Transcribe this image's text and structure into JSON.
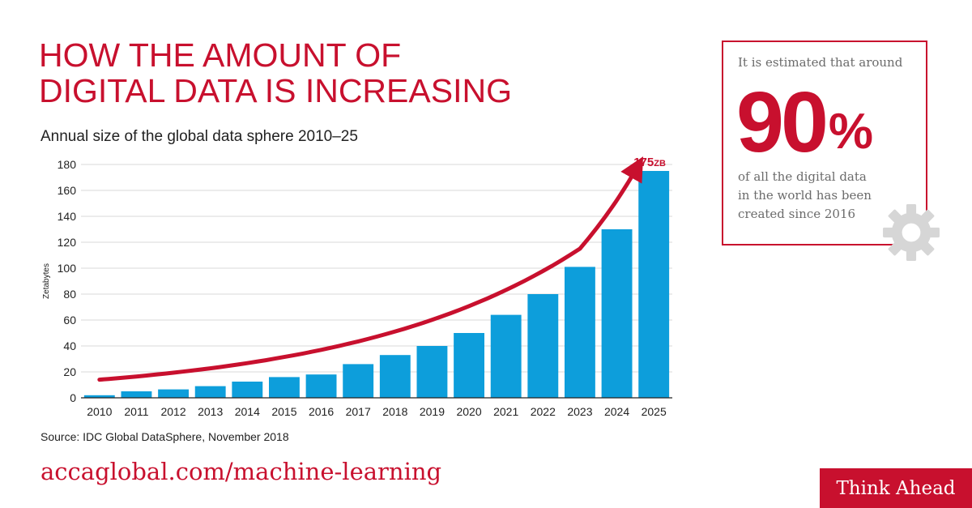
{
  "header": {
    "title_line1": "HOW THE AMOUNT OF",
    "title_line2": "DIGITAL DATA IS INCREASING",
    "subtitle": "Annual size of the global data sphere 2010–25"
  },
  "chart_data": {
    "type": "bar",
    "title": "Annual size of the global data sphere 2010–25",
    "xlabel": "",
    "ylabel": "Zetabytes",
    "categories": [
      "2010",
      "2011",
      "2012",
      "2013",
      "2014",
      "2015",
      "2016",
      "2017",
      "2018",
      "2019",
      "2020",
      "2021",
      "2022",
      "2023",
      "2024",
      "2025"
    ],
    "values": [
      2,
      5,
      6.5,
      9,
      12.5,
      16,
      18,
      26,
      33,
      40,
      50,
      64,
      80,
      101,
      130,
      175
    ],
    "ylim": [
      0,
      180
    ],
    "yticks": [
      0,
      20,
      40,
      60,
      80,
      100,
      120,
      140,
      160,
      180
    ],
    "grid": true,
    "bar_color": "#0d9edb",
    "trend_color": "#c8102e",
    "annotation": {
      "value": "175",
      "unit": "ZB"
    }
  },
  "source": "Source: IDC Global DataSphere, November 2018",
  "url": "accaglobal.com/machine-learning",
  "callout": {
    "lead": "It is estimated that around",
    "big_number": "90",
    "big_suffix": "%",
    "rest_line1": "of all the digital data",
    "rest_line2": "in the world has been",
    "rest_line3": "created since 2016",
    "icon": "gear-icon"
  },
  "brand": {
    "label": "Think Ahead"
  },
  "colors": {
    "accent": "#c8102e",
    "bar": "#0d9edb",
    "grid": "#d9d9d9",
    "muted": "#6b6b6b"
  }
}
